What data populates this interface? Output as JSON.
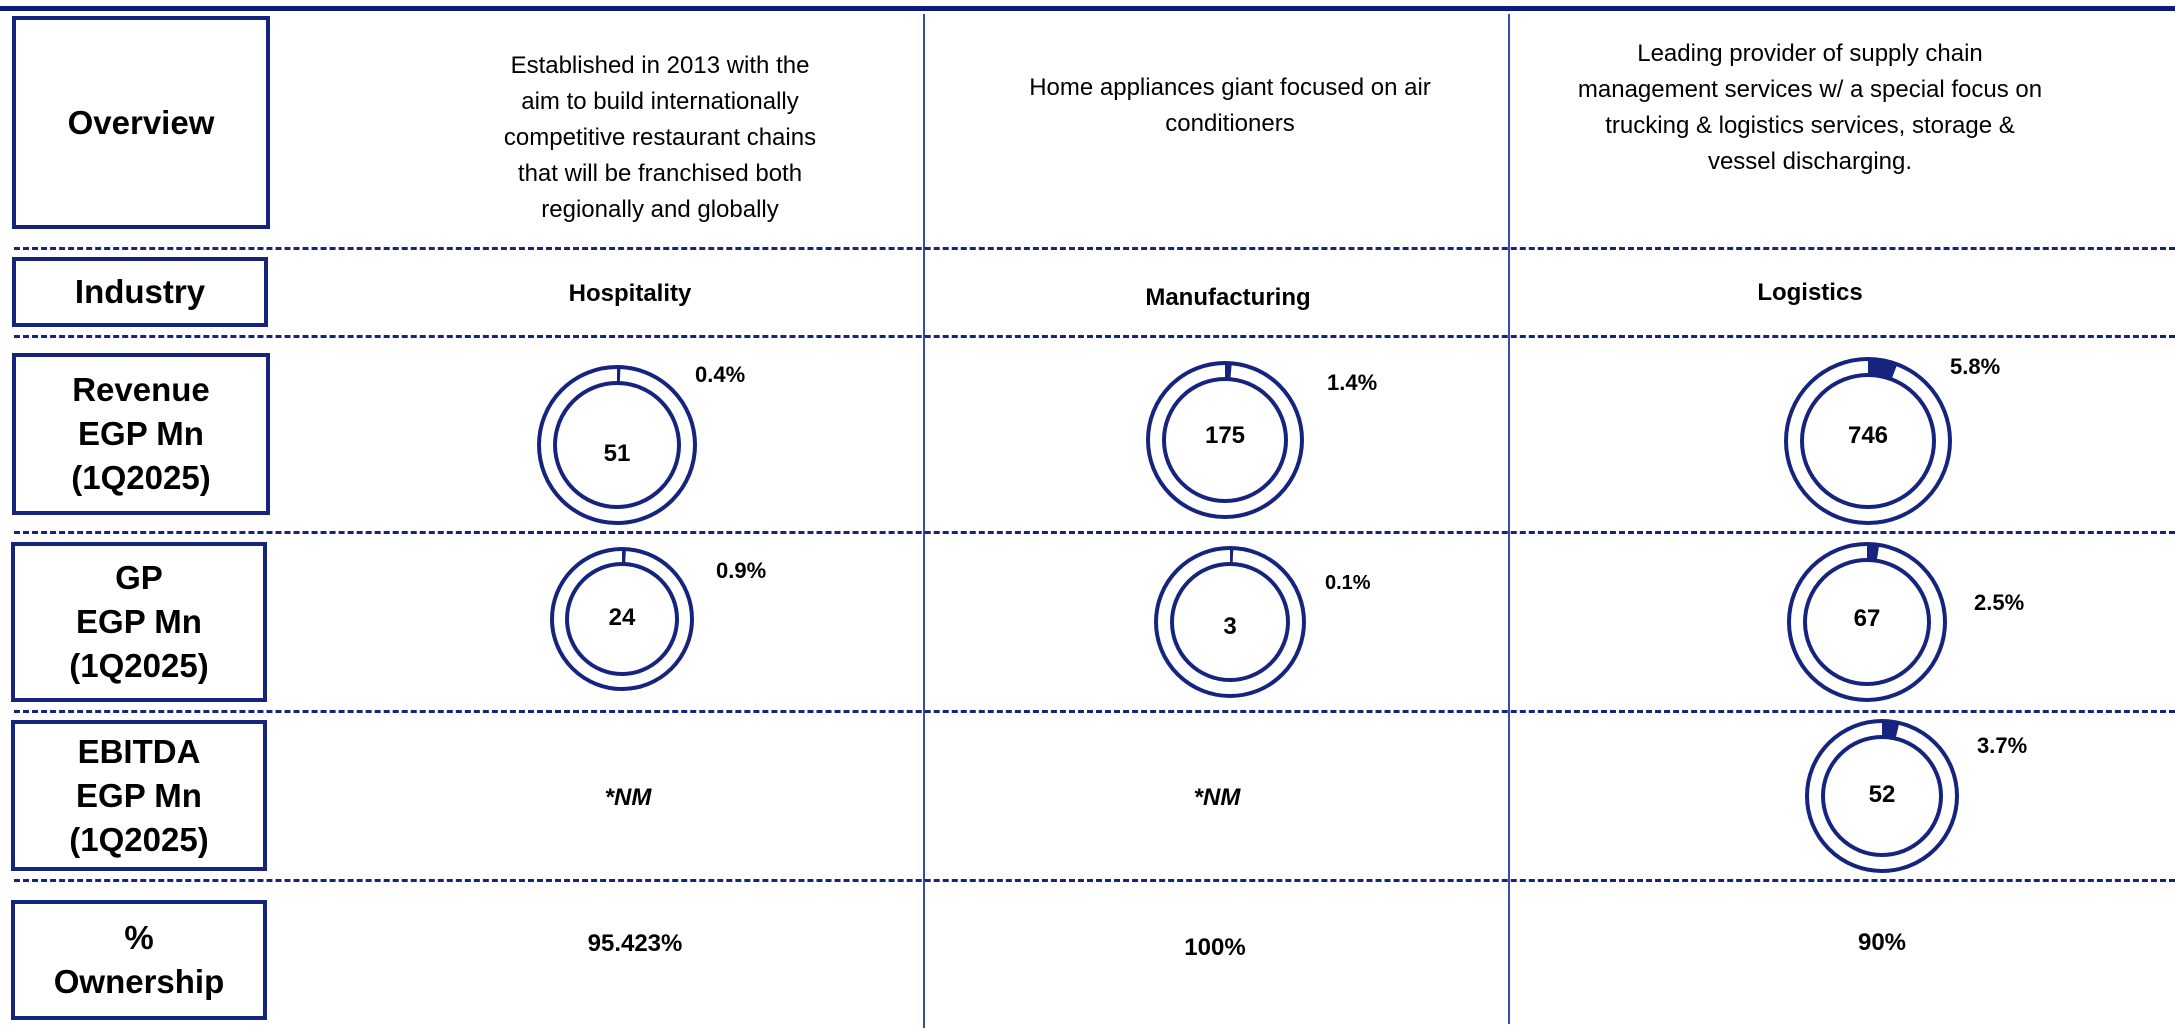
{
  "labels": {
    "overview": "Overview",
    "industry": "Industry",
    "revenue": "Revenue\nEGP Mn\n(1Q2025)",
    "gp": "GP\nEGP Mn\n(1Q2025)",
    "ebitda": "EBITDA\nEGP Mn\n(1Q2025)",
    "ownership": "%\nOwnership"
  },
  "columns": [
    {
      "overview": "Established in 2013 with the aim to build internationally competitive restaurant chains that will be franchised both regionally and globally",
      "industry": "Hospitality",
      "revenue": {
        "value": "51",
        "share": "0.4%",
        "fraction": 0.004
      },
      "gp": {
        "value": "24",
        "share": "0.9%",
        "fraction": 0.009
      },
      "ebitda_text": "*NM",
      "ownership": "95.423%"
    },
    {
      "overview": "Home appliances giant  focused on air conditioners",
      "industry": "Manufacturing",
      "revenue": {
        "value": "175",
        "share": "1.4%",
        "fraction": 0.014
      },
      "gp": {
        "value": "3",
        "share": "0.1%",
        "fraction": 0.001
      },
      "ebitda_text": "*NM",
      "ownership": "100%"
    },
    {
      "overview": "Leading provider of supply  chain management  services w/ a special focus  on trucking & logistics  services, storage & vessel  discharging.",
      "industry": "Logistics",
      "revenue": {
        "value": "746",
        "share": "5.8%",
        "fraction": 0.058
      },
      "gp": {
        "value": "67",
        "share": "2.5%",
        "fraction": 0.025
      },
      "ebitda": {
        "value": "52",
        "share": "3.7%",
        "fraction": 0.037
      },
      "ownership": "90%"
    }
  ],
  "colors": {
    "primary": "#16237f",
    "accent": "#0d1a7a"
  }
}
